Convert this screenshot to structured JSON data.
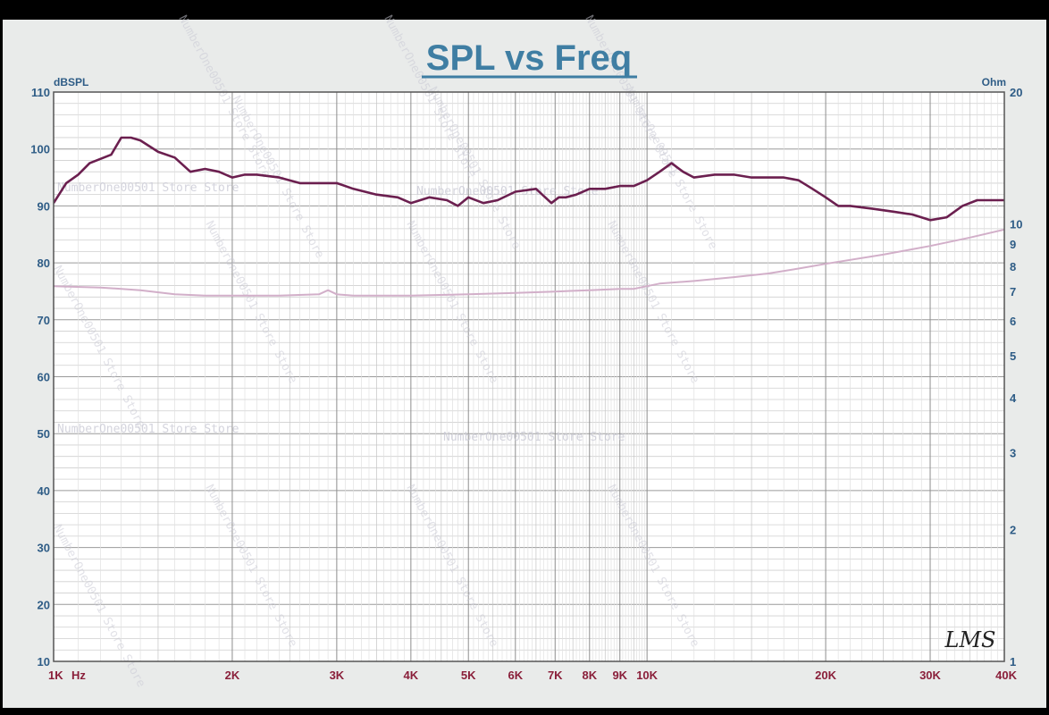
{
  "chart_data": {
    "type": "line",
    "title": "SPL vs Freq",
    "left_axis": {
      "unit_label": "dBSPL",
      "range": [
        10,
        110
      ],
      "ticks": [
        10,
        20,
        30,
        40,
        50,
        60,
        70,
        80,
        90,
        100,
        110
      ]
    },
    "right_axis": {
      "unit_label": "Ohm",
      "scale": "log",
      "range": [
        1,
        20
      ],
      "ticks": [
        {
          "value": 1,
          "label": "1"
        },
        {
          "value": 2,
          "label": "2"
        },
        {
          "value": 3,
          "label": "3"
        },
        {
          "value": 4,
          "label": "4"
        },
        {
          "value": 5,
          "label": "5"
        },
        {
          "value": 6,
          "label": "6"
        },
        {
          "value": 7,
          "label": "7"
        },
        {
          "value": 8,
          "label": "8"
        },
        {
          "value": 9,
          "label": "9"
        },
        {
          "value": 10,
          "label": "10"
        },
        {
          "value": 20,
          "label": "20"
        }
      ]
    },
    "x_axis": {
      "unit_label": "Hz",
      "scale": "log",
      "range": [
        1000,
        40000
      ],
      "ticks": [
        {
          "value": 1000,
          "label": "1K"
        },
        {
          "value": 2000,
          "label": "2K"
        },
        {
          "value": 3000,
          "label": "3K"
        },
        {
          "value": 4000,
          "label": "4K"
        },
        {
          "value": 5000,
          "label": "5K"
        },
        {
          "value": 6000,
          "label": "6K"
        },
        {
          "value": 7000,
          "label": "7K"
        },
        {
          "value": 8000,
          "label": "8K"
        },
        {
          "value": 9000,
          "label": "9K"
        },
        {
          "value": 10000,
          "label": "10K"
        },
        {
          "value": 20000,
          "label": "20K"
        },
        {
          "value": 30000,
          "label": "30K"
        },
        {
          "value": 40000,
          "label": "40K"
        }
      ]
    },
    "grid": true,
    "series": [
      {
        "axis": "left",
        "color": "#6b1f4f",
        "x": [
          1000,
          1050,
          1100,
          1150,
          1250,
          1300,
          1350,
          1400,
          1500,
          1600,
          1700,
          1800,
          1900,
          2000,
          2100,
          2200,
          2400,
          2600,
          2800,
          3000,
          3200,
          3500,
          3800,
          4000,
          4300,
          4600,
          4800,
          5000,
          5300,
          5600,
          6000,
          6500,
          6900,
          7100,
          7300,
          7600,
          8000,
          8500,
          9000,
          9500,
          10000,
          10500,
          11000,
          11500,
          12000,
          13000,
          14000,
          15000,
          16000,
          17000,
          18000,
          19000,
          20000,
          21000,
          22000,
          24000,
          26000,
          28000,
          30000,
          32000,
          34000,
          36000,
          38000,
          40000
        ],
        "y": [
          90.5,
          94,
          95.5,
          97.5,
          99,
          102,
          102,
          101.5,
          99.5,
          98.5,
          96,
          96.5,
          96,
          95,
          95.5,
          95.5,
          95,
          94,
          94,
          94,
          93,
          92,
          91.5,
          90.5,
          91.5,
          91,
          90,
          91.5,
          90.5,
          91,
          92.5,
          93,
          90.5,
          91.5,
          91.5,
          92,
          93,
          93,
          93.5,
          93.5,
          94.5,
          96,
          97.5,
          96,
          95,
          95.5,
          95.5,
          95,
          95,
          95,
          94.5,
          93,
          91.5,
          90,
          90,
          89.5,
          89,
          88.5,
          87.5,
          88,
          90,
          91,
          91,
          91
        ]
      },
      {
        "axis": "right",
        "color": "#d2afc9",
        "x": [
          1000,
          1200,
          1400,
          1600,
          1800,
          2000,
          2400,
          2800,
          2900,
          3000,
          3200,
          3600,
          4000,
          5000,
          6000,
          7000,
          8000,
          9000,
          9500,
          10000,
          10500,
          12000,
          14000,
          16000,
          18000,
          20000,
          25000,
          30000,
          35000,
          40000
        ],
        "y": [
          7.2,
          7.15,
          7.05,
          6.9,
          6.85,
          6.85,
          6.85,
          6.9,
          7.05,
          6.9,
          6.85,
          6.85,
          6.85,
          6.9,
          6.95,
          7,
          7.05,
          7.1,
          7.1,
          7.2,
          7.3,
          7.4,
          7.55,
          7.7,
          7.9,
          8.1,
          8.5,
          8.9,
          9.3,
          9.7
        ]
      }
    ]
  },
  "watermark": "NumberOne00501 Store Store",
  "logo_text": "LMS"
}
